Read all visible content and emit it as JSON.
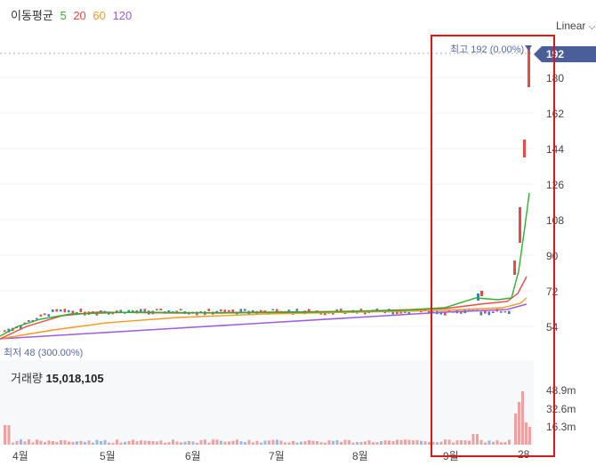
{
  "legend": {
    "title": "이동평균",
    "periods": [
      {
        "label": "5",
        "color": "#2bb32b"
      },
      {
        "label": "20",
        "color": "#f04848"
      },
      {
        "label": "60",
        "color": "#f59a23"
      },
      {
        "label": "120",
        "color": "#9b5de5"
      }
    ]
  },
  "scale_selector": {
    "value": "Linear"
  },
  "price_axis": {
    "ticks": [
      "180",
      "162",
      "144",
      "126",
      "108",
      "90",
      "72",
      "54"
    ],
    "current": "192"
  },
  "high_marker": {
    "text": "최고 192 (0.00%)"
  },
  "low_marker": {
    "text": "최저 48 (300.00%)"
  },
  "volume": {
    "label": "거래량",
    "value": "15,018,105",
    "ticks": [
      "48.9m",
      "32.6m",
      "16.3m"
    ]
  },
  "x_axis": {
    "ticks": [
      "4월",
      "5월",
      "6월",
      "7월",
      "8월",
      "9월",
      "28"
    ]
  },
  "colors": {
    "up": "#e84a4a",
    "down": "#3a7bd5",
    "badge": "#4a5f9a",
    "highlight": "#e01515"
  },
  "chart_data": {
    "type": "line",
    "description_series": [
      {
        "name": "5",
        "color": "#2bb32b"
      },
      {
        "name": "20",
        "color": "#f04848"
      },
      {
        "name": "60",
        "color": "#f59a23"
      },
      {
        "name": "120",
        "color": "#9b5de5"
      }
    ],
    "ylim": [
      45,
      195
    ],
    "y_ticks": [
      54,
      72,
      90,
      108,
      126,
      144,
      162,
      180
    ],
    "high": 192,
    "low": 48,
    "volume_ticks_m": [
      16.3,
      32.6,
      48.9
    ]
  }
}
